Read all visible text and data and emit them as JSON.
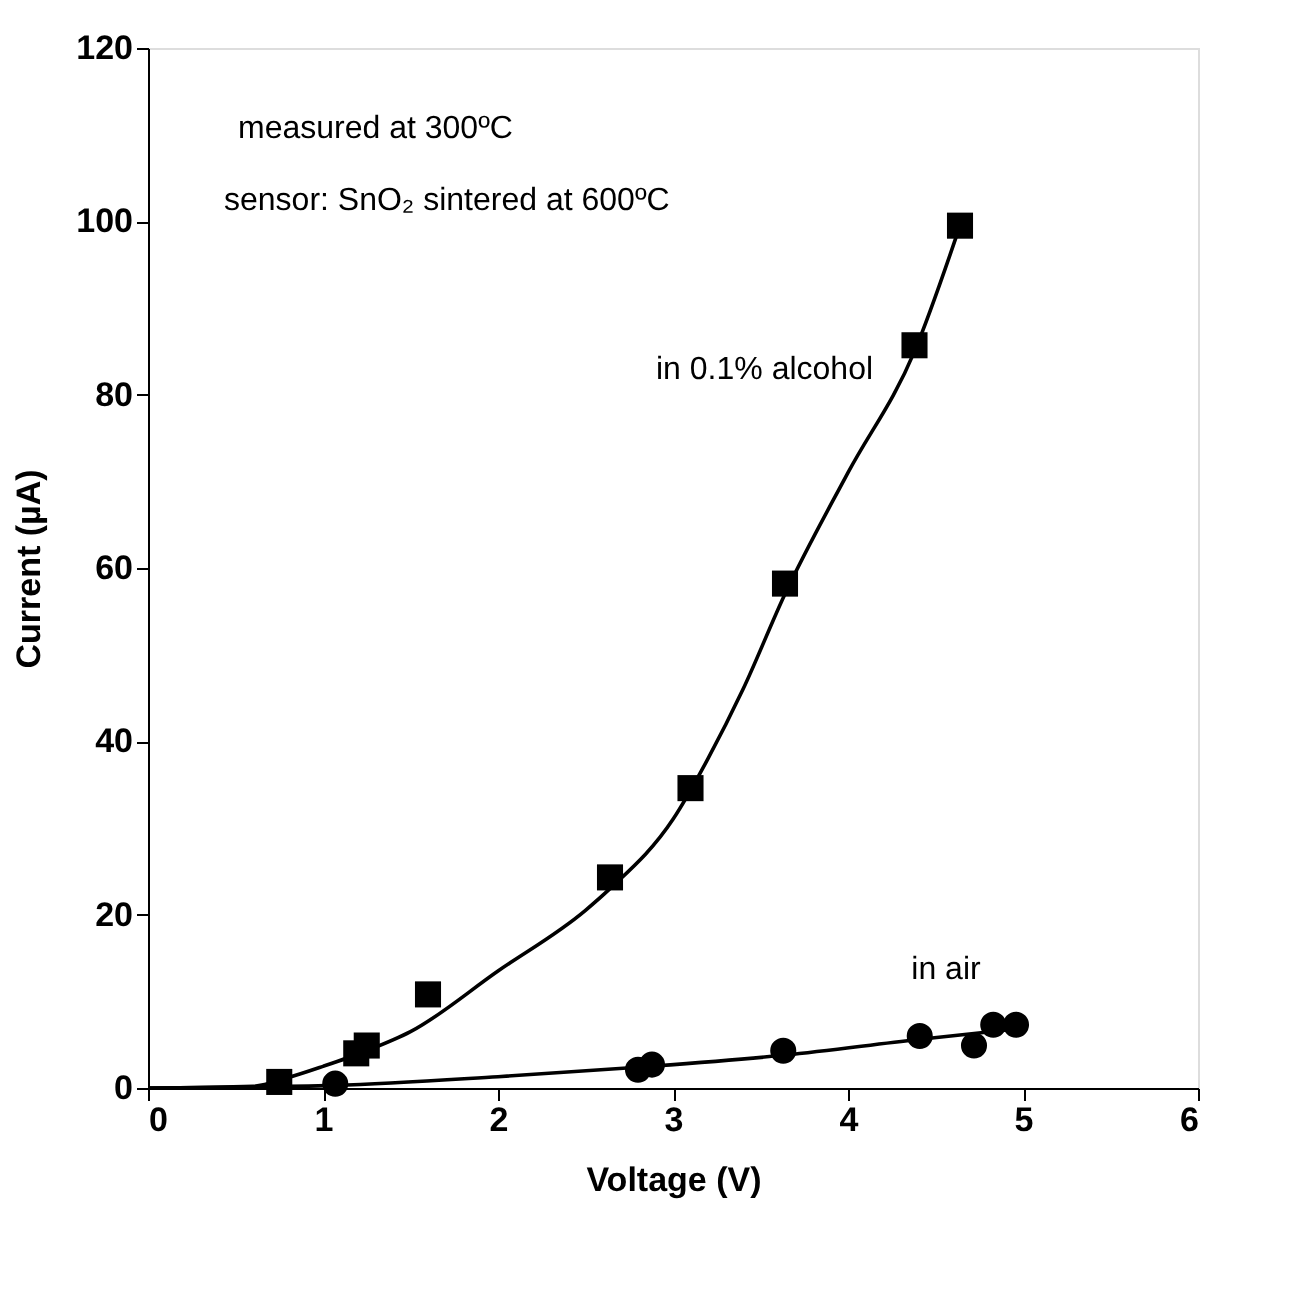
{
  "chart_data": {
    "type": "scatter",
    "xlabel": "Voltage (V)",
    "ylabel": "Current (µA)",
    "xlim": [
      0,
      6
    ],
    "ylim": [
      0,
      120
    ],
    "xticks": [
      0,
      1,
      2,
      3,
      4,
      5,
      6
    ],
    "yticks": [
      0,
      20,
      40,
      60,
      80,
      100,
      120
    ],
    "grid": false,
    "annotations": [
      "measured at 300ºC",
      "sensor: SnO₂ sintered at 600ºC"
    ],
    "series": [
      {
        "name": "in 0.1% alcohol",
        "marker": "square",
        "color": "#000000",
        "x": [
          0.75,
          1.19,
          1.25,
          1.6,
          2.64,
          3.1,
          3.64,
          4.38,
          4.64
        ],
        "values": [
          0.7,
          4.0,
          4.9,
          10.8,
          24.3,
          34.6,
          58.2,
          85.7,
          99.5
        ]
      },
      {
        "name": "in air",
        "marker": "circle",
        "color": "#000000",
        "x": [
          1.07,
          2.8,
          2.88,
          3.63,
          4.41,
          4.72,
          4.83,
          4.96
        ],
        "values": [
          0.5,
          2.1,
          2.7,
          4.3,
          6.0,
          4.9,
          7.3,
          7.3
        ]
      },
      {
        "type": "line",
        "marker": "none",
        "line_style": "solid",
        "color": "#000000",
        "x": [
          0,
          0.6,
          0.8,
          1.0,
          1.25,
          1.5,
          2.0,
          2.5,
          2.64,
          3.0,
          3.2,
          3.4,
          3.64,
          4.0,
          4.38,
          4.64
        ],
        "values": [
          0,
          0.2,
          1.2,
          2.5,
          4.3,
          6.5,
          13.5,
          20.5,
          23,
          31,
          38,
          46,
          57,
          71,
          85,
          99.5
        ]
      },
      {
        "type": "line",
        "marker": "none",
        "line_style": "solid",
        "color": "#000000",
        "x": [
          0,
          1.07,
          2.0,
          2.8,
          3.64,
          4.4,
          4.96
        ],
        "values": [
          0,
          0.3,
          1.3,
          2.4,
          3.8,
          5.6,
          6.8
        ]
      }
    ]
  }
}
